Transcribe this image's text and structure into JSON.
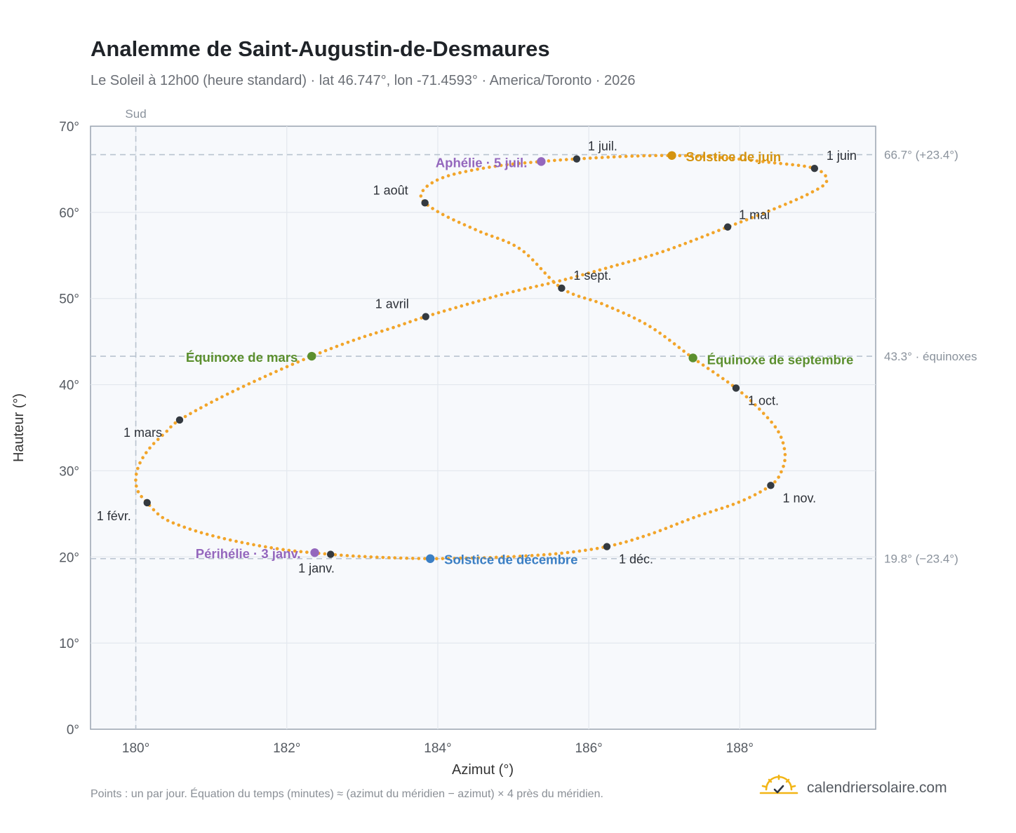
{
  "title": "Analemme de Saint-Augustin-de-Desmaures",
  "subtitle": "Le Soleil à 12h00 (heure standard) · lat 46.747°, lon -71.4593° · America/Toronto · 2026",
  "footnote": "Points : un par jour. Équation du temps (minutes) ≈ (azimut du méridien − azimut) × 4 près du méridien.",
  "brand": "calendriersolaire.com",
  "colors": {
    "curve": "#f2a52a",
    "month_point": "#343a40",
    "solstice_june": "#d4930f",
    "solstice_december": "#3b7fc4",
    "equinox": "#5b8f2e",
    "aphelion": "#9467bd",
    "reference_line": "#b8c3cf",
    "plot_background": "#f7f9fc"
  },
  "chart_data": {
    "type": "scatter",
    "xlabel": "Azimut (°)",
    "ylabel": "Hauteur (°)",
    "xlim": [
      179.4,
      189.8
    ],
    "ylim": [
      0,
      70
    ],
    "xticks": [
      180,
      182,
      184,
      186,
      188
    ],
    "xtick_labels": [
      "180°",
      "182°",
      "184°",
      "186°",
      "188°"
    ],
    "yticks": [
      0,
      10,
      20,
      30,
      40,
      50,
      60,
      70
    ],
    "ytick_labels": [
      "0°",
      "10°",
      "20°",
      "30°",
      "40°",
      "50°",
      "60°",
      "70°"
    ],
    "grid": true,
    "reference_lines": {
      "vertical": [
        {
          "x": 180,
          "label": "Sud"
        }
      ],
      "horizontal": [
        {
          "y": 66.7,
          "label": "66.7° (+23.4°)"
        },
        {
          "y": 43.3,
          "label": "43.3° · équinoxes"
        },
        {
          "y": 19.8,
          "label": "19.8° (−23.4°)"
        }
      ]
    },
    "month_points": [
      {
        "label": "1 janv.",
        "x": 182.58,
        "y": 20.3
      },
      {
        "label": "1 févr.",
        "x": 180.15,
        "y": 26.3
      },
      {
        "label": "1 mars",
        "x": 180.58,
        "y": 35.9
      },
      {
        "label": "1 avril",
        "x": 183.84,
        "y": 47.9
      },
      {
        "label": "1 mai",
        "x": 187.84,
        "y": 58.3
      },
      {
        "label": "1 juin",
        "x": 188.99,
        "y": 65.1
      },
      {
        "label": "1 juil.",
        "x": 185.84,
        "y": 66.2
      },
      {
        "label": "1 août",
        "x": 183.83,
        "y": 61.1
      },
      {
        "label": "1 sept.",
        "x": 185.64,
        "y": 51.2
      },
      {
        "label": "1 oct.",
        "x": 187.95,
        "y": 39.6
      },
      {
        "label": "1 nov.",
        "x": 188.41,
        "y": 28.3
      },
      {
        "label": "1 déc.",
        "x": 186.24,
        "y": 21.2
      }
    ],
    "events": [
      {
        "label": "Solstice de juin",
        "x": 187.1,
        "y": 66.6,
        "kind": "solstice_june"
      },
      {
        "label": "Solstice de décembre",
        "x": 183.9,
        "y": 19.8,
        "kind": "solstice_december"
      },
      {
        "label": "Équinoxe de mars",
        "x": 182.33,
        "y": 43.3,
        "kind": "equinox"
      },
      {
        "label": "Équinoxe de septembre",
        "x": 187.38,
        "y": 43.1,
        "kind": "equinox"
      },
      {
        "label": "Aphélie · 5 juil.",
        "x": 185.37,
        "y": 65.9,
        "kind": "aphelion"
      },
      {
        "label": "Périhélie · 3 janv.",
        "x": 182.37,
        "y": 20.5,
        "kind": "aphelion"
      }
    ],
    "curve": [
      [
        182.58,
        20.3
      ],
      [
        182.0,
        20.8
      ],
      [
        181.45,
        21.6
      ],
      [
        181.0,
        22.5
      ],
      [
        180.63,
        23.5
      ],
      [
        180.35,
        24.6
      ],
      [
        180.15,
        26.3
      ],
      [
        180.03,
        27.6
      ],
      [
        180.0,
        29.2
      ],
      [
        180.06,
        31.0
      ],
      [
        180.2,
        32.8
      ],
      [
        180.4,
        34.5
      ],
      [
        180.58,
        35.9
      ],
      [
        181.1,
        38.4
      ],
      [
        181.7,
        40.9
      ],
      [
        182.33,
        43.3
      ],
      [
        182.9,
        45.2
      ],
      [
        183.4,
        46.6
      ],
      [
        183.84,
        47.9
      ],
      [
        184.5,
        49.6
      ],
      [
        185.0,
        50.8
      ],
      [
        185.64,
        52.1
      ],
      [
        186.3,
        53.7
      ],
      [
        187.0,
        55.5
      ],
      [
        187.84,
        58.3
      ],
      [
        188.4,
        60.2
      ],
      [
        188.9,
        62.1
      ],
      [
        189.15,
        63.6
      ],
      [
        188.99,
        65.1
      ],
      [
        188.4,
        65.8
      ],
      [
        187.7,
        66.4
      ],
      [
        187.1,
        66.6
      ],
      [
        186.5,
        66.5
      ],
      [
        185.84,
        66.2
      ],
      [
        185.37,
        65.9
      ],
      [
        184.8,
        65.4
      ],
      [
        184.2,
        64.4
      ],
      [
        183.9,
        63.3
      ],
      [
        183.78,
        62.1
      ],
      [
        183.83,
        61.1
      ],
      [
        184.1,
        59.6
      ],
      [
        184.55,
        57.8
      ],
      [
        185.1,
        55.7
      ],
      [
        185.64,
        51.2
      ],
      [
        186.2,
        49.3
      ],
      [
        186.8,
        46.8
      ],
      [
        187.38,
        43.1
      ],
      [
        187.95,
        39.6
      ],
      [
        188.3,
        36.8
      ],
      [
        188.52,
        34.4
      ],
      [
        188.6,
        31.9
      ],
      [
        188.55,
        29.9
      ],
      [
        188.41,
        28.3
      ],
      [
        188.0,
        26.4
      ],
      [
        187.4,
        24.6
      ],
      [
        186.8,
        22.6
      ],
      [
        186.24,
        21.2
      ],
      [
        185.6,
        20.4
      ],
      [
        184.9,
        20.0
      ],
      [
        184.3,
        19.85
      ],
      [
        183.9,
        19.8
      ],
      [
        183.4,
        19.9
      ],
      [
        182.9,
        20.1
      ],
      [
        182.58,
        20.3
      ]
    ]
  }
}
